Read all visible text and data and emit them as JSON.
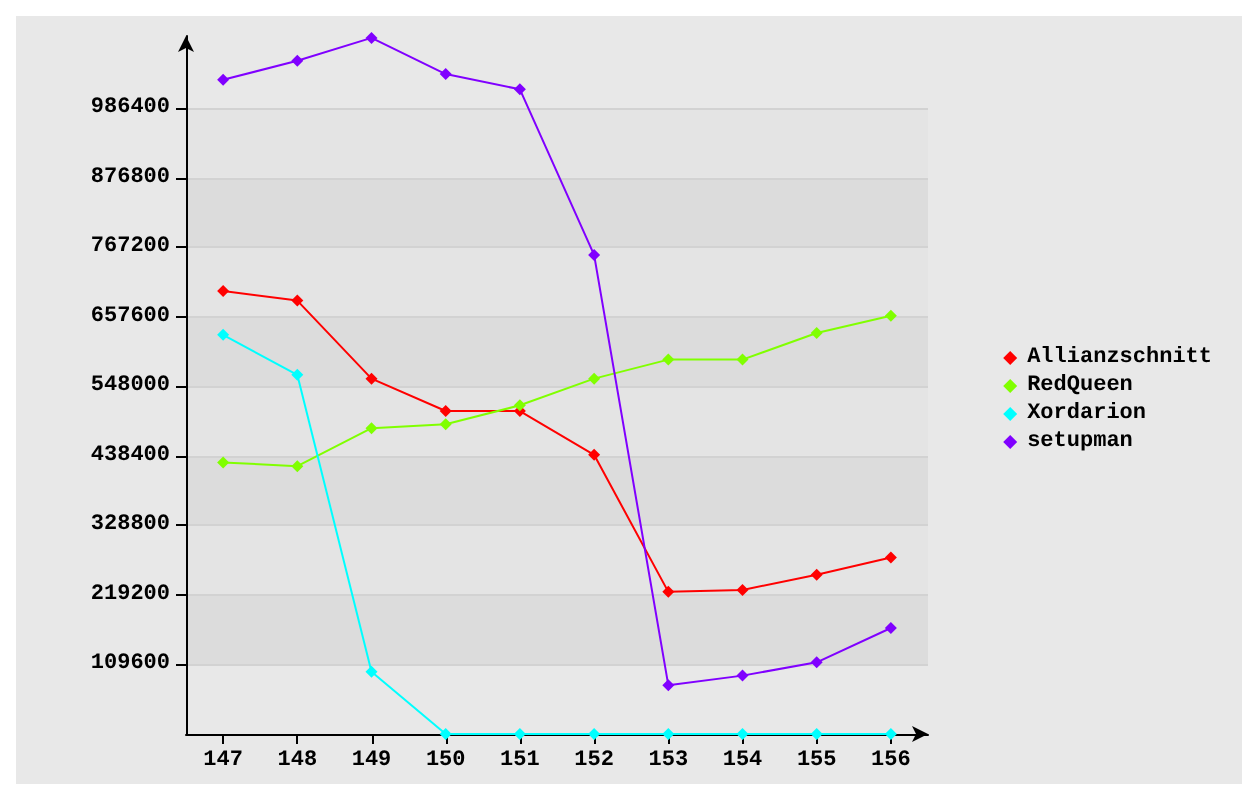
{
  "chart_data": {
    "type": "line",
    "categories": [
      "147",
      "148",
      "149",
      "150",
      "151",
      "152",
      "153",
      "154",
      "155",
      "156"
    ],
    "series": [
      {
        "name": "Allianzschnitt",
        "color": "#ff0000",
        "values": [
          698000,
          683000,
          560000,
          509000,
          509000,
          440000,
          224000,
          227000,
          251000,
          278000
        ]
      },
      {
        "name": "RedQueen",
        "color": "#80ff00",
        "values": [
          428000,
          422000,
          482000,
          488000,
          518000,
          560000,
          590000,
          590000,
          632000,
          659000
        ]
      },
      {
        "name": "Xordarion",
        "color": "#00ffff",
        "values": [
          629000,
          566000,
          98000,
          0,
          0,
          0,
          0,
          0,
          0,
          0
        ]
      },
      {
        "name": "setupman",
        "color": "#8000ff",
        "values": [
          1031000,
          1061000,
          1097000,
          1040000,
          1016000,
          755000,
          77000,
          92000,
          113000,
          167000
        ]
      }
    ],
    "ylim": [
      0,
      1100000
    ],
    "yticks": [
      109600,
      219200,
      328800,
      438400,
      548000,
      657600,
      767200,
      876800,
      986400
    ],
    "grid": "y",
    "legend": "right",
    "marker": "diamond",
    "line_style": "solid"
  }
}
